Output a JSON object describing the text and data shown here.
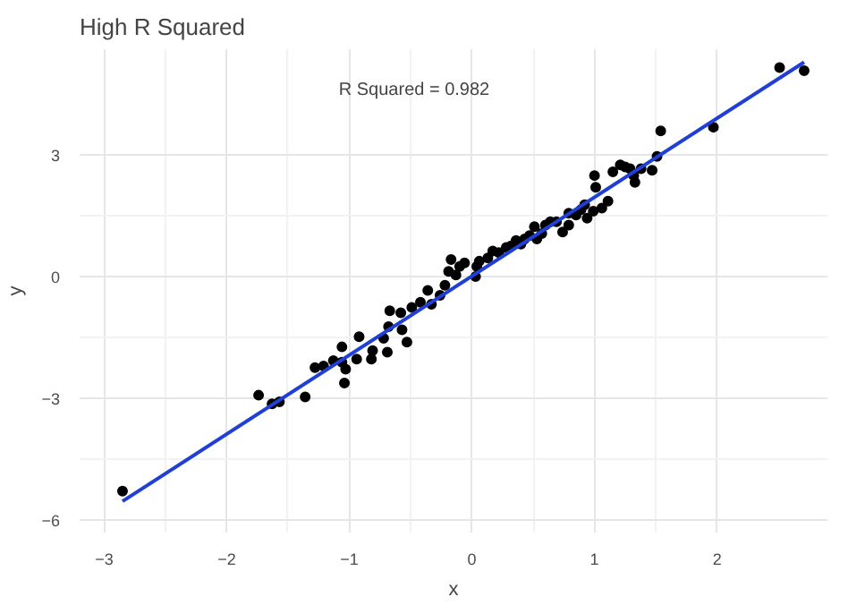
{
  "chart_data": {
    "type": "scatter",
    "title": "High R Squared",
    "xlabel": "x",
    "ylabel": "y",
    "xlim": [
      -3.2,
      2.9
    ],
    "ylim": [
      -6.3,
      5.6
    ],
    "xticks": [
      -3,
      -2,
      -1,
      0,
      1,
      2
    ],
    "yticks": [
      -6,
      -3,
      0,
      3
    ],
    "grid": true,
    "annotations": [
      "R Squared = 0.982"
    ],
    "series": [
      {
        "marker": "circle",
        "color": "#000000",
        "x": [
          -2.85,
          -1.74,
          -1.63,
          -1.57,
          -1.36,
          -1.28,
          -1.21,
          -1.13,
          -1.06,
          -1.03,
          -1.04,
          -1.06,
          -0.94,
          -0.92,
          -0.81,
          -0.82,
          -0.72,
          -0.68,
          -0.69,
          -0.57,
          -0.53,
          -0.58,
          -0.67,
          -0.49,
          -0.42,
          -0.33,
          -0.26,
          -0.36,
          -0.22,
          -0.13,
          -0.19,
          -0.17,
          -0.1,
          -0.06,
          0.03,
          0.04,
          0.06,
          0.13,
          0.17,
          0.22,
          0.28,
          0.32,
          0.36,
          0.4,
          0.43,
          0.47,
          0.51,
          0.53,
          0.57,
          0.6,
          0.64,
          0.69,
          0.74,
          0.79,
          0.85,
          0.89,
          0.92,
          0.94,
          0.99,
          0.79,
          1.06,
          1.11,
          1.15,
          1.21,
          1.25,
          1.29,
          1.32,
          1.33,
          1.38,
          1.47,
          1.01,
          1.0,
          1.54,
          1.51,
          1.97,
          2.51,
          2.71
        ],
        "values": [
          -5.28,
          -2.92,
          -3.13,
          -3.08,
          -2.96,
          -2.24,
          -2.2,
          -2.07,
          -2.11,
          -2.28,
          -2.62,
          -1.73,
          -2.03,
          -1.48,
          -1.82,
          -2.03,
          -1.52,
          -1.23,
          -1.86,
          -1.31,
          -1.61,
          -0.89,
          -0.84,
          -0.76,
          -0.63,
          -0.68,
          -0.46,
          -0.34,
          -0.21,
          0.04,
          0.13,
          0.42,
          0.25,
          0.34,
          0.0,
          0.25,
          0.38,
          0.46,
          0.63,
          0.59,
          0.72,
          0.76,
          0.89,
          0.8,
          0.93,
          1.01,
          1.23,
          0.93,
          1.06,
          1.27,
          1.35,
          1.35,
          1.1,
          1.56,
          1.52,
          1.65,
          1.77,
          1.44,
          1.61,
          1.27,
          1.69,
          1.86,
          2.58,
          2.75,
          2.7,
          2.66,
          2.49,
          2.32,
          2.66,
          2.62,
          2.2,
          2.49,
          3.59,
          2.96,
          3.68,
          5.15,
          5.07
        ]
      },
      {
        "type": "line",
        "color": "#1f3fd6",
        "x": [
          -2.85,
          2.71
        ],
        "values": [
          -5.53,
          5.28
        ]
      }
    ]
  }
}
